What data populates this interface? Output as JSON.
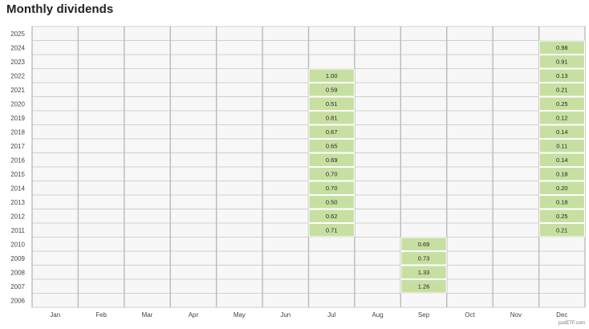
{
  "title": "Monthly dividends",
  "credit": "justETF.com",
  "chart_data": {
    "type": "heatmap",
    "title": "Monthly dividends",
    "xlabel": "",
    "ylabel": "",
    "x_categories": [
      "Jan",
      "Feb",
      "Mar",
      "Apr",
      "May",
      "Jun",
      "Jul",
      "Aug",
      "Sep",
      "Oct",
      "Nov",
      "Dec"
    ],
    "y_categories": [
      "2025",
      "2024",
      "2023",
      "2022",
      "2021",
      "2020",
      "2019",
      "2018",
      "2017",
      "2016",
      "2015",
      "2014",
      "2013",
      "2012",
      "2011",
      "2010",
      "2009",
      "2008",
      "2007",
      "2006"
    ],
    "grid": true,
    "colors": {
      "empty_cell": "#f7f7f7",
      "filled_cell": "#c7e0a2",
      "grid_line": "#d0d0d0",
      "bold_line": "#bbbbbb"
    },
    "cells": [
      {
        "year": "2024",
        "month": "Dec",
        "value": 0.98
      },
      {
        "year": "2023",
        "month": "Dec",
        "value": 0.91
      },
      {
        "year": "2022",
        "month": "Jul",
        "value": 1.0
      },
      {
        "year": "2022",
        "month": "Dec",
        "value": 0.13
      },
      {
        "year": "2021",
        "month": "Jul",
        "value": 0.59
      },
      {
        "year": "2021",
        "month": "Dec",
        "value": 0.21
      },
      {
        "year": "2020",
        "month": "Jul",
        "value": 0.51
      },
      {
        "year": "2020",
        "month": "Dec",
        "value": 0.25
      },
      {
        "year": "2019",
        "month": "Jul",
        "value": 0.81
      },
      {
        "year": "2019",
        "month": "Dec",
        "value": 0.12
      },
      {
        "year": "2018",
        "month": "Jul",
        "value": 0.67
      },
      {
        "year": "2018",
        "month": "Dec",
        "value": 0.14
      },
      {
        "year": "2017",
        "month": "Jul",
        "value": 0.65
      },
      {
        "year": "2017",
        "month": "Dec",
        "value": 0.11
      },
      {
        "year": "2016",
        "month": "Jul",
        "value": 0.69
      },
      {
        "year": "2016",
        "month": "Dec",
        "value": 0.14
      },
      {
        "year": "2015",
        "month": "Jul",
        "value": 0.7
      },
      {
        "year": "2015",
        "month": "Dec",
        "value": 0.18
      },
      {
        "year": "2014",
        "month": "Jul",
        "value": 0.7
      },
      {
        "year": "2014",
        "month": "Dec",
        "value": 0.2
      },
      {
        "year": "2013",
        "month": "Jul",
        "value": 0.5
      },
      {
        "year": "2013",
        "month": "Dec",
        "value": 0.18
      },
      {
        "year": "2012",
        "month": "Jul",
        "value": 0.62
      },
      {
        "year": "2012",
        "month": "Dec",
        "value": 0.25
      },
      {
        "year": "2011",
        "month": "Jul",
        "value": 0.71
      },
      {
        "year": "2011",
        "month": "Dec",
        "value": 0.21
      },
      {
        "year": "2010",
        "month": "Sep",
        "value": 0.69
      },
      {
        "year": "2009",
        "month": "Sep",
        "value": 0.73
      },
      {
        "year": "2008",
        "month": "Sep",
        "value": 1.33
      },
      {
        "year": "2007",
        "month": "Sep",
        "value": 1.26
      }
    ]
  }
}
